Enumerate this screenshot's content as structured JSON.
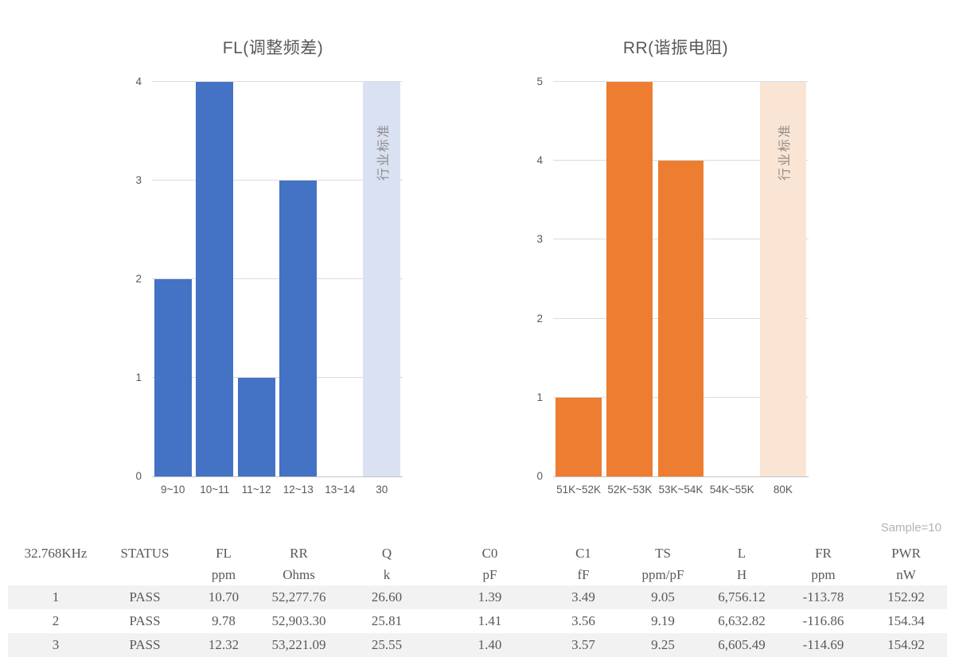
{
  "chart_data": [
    {
      "type": "bar",
      "title": "FL(调整频差)",
      "categories": [
        "9~10",
        "10~11",
        "11~12",
        "12~13",
        "13~14",
        "30"
      ],
      "values": [
        2,
        4,
        1,
        3,
        0,
        4
      ],
      "xlabel": "",
      "ylabel": "",
      "ylim": [
        0,
        4
      ],
      "ytick_step": 1,
      "grid": true,
      "legend": false,
      "bar_color": "#4472C4",
      "standard": {
        "index": 5,
        "category": "30",
        "label": "行业标准",
        "full_height": true
      },
      "standard_color": "#DAE1F2",
      "standard_text_color": "#8C8C8C"
    },
    {
      "type": "bar",
      "title": "RR(谐振电阻)",
      "categories": [
        "51K~52K",
        "52K~53K",
        "53K~54K",
        "54K~55K",
        "80K"
      ],
      "values": [
        1,
        5,
        4,
        0,
        5
      ],
      "xlabel": "",
      "ylabel": "",
      "ylim": [
        0,
        5
      ],
      "ytick_step": 1,
      "grid": true,
      "legend": false,
      "bar_color": "#ED7D31",
      "standard": {
        "index": 4,
        "category": "80K",
        "label": "行业标准",
        "full_height": true
      },
      "standard_color": "#FAE5D5",
      "standard_text_color": "#8C8C8C"
    }
  ],
  "table": {
    "sample_note": "Sample=10",
    "columns": [
      {
        "name": "32.768KHz",
        "unit": ""
      },
      {
        "name": "STATUS",
        "unit": ""
      },
      {
        "name": "FL",
        "unit": "ppm"
      },
      {
        "name": "RR",
        "unit": "Ohms"
      },
      {
        "name": "Q",
        "unit": "k"
      },
      {
        "name": "C0",
        "unit": "pF"
      },
      {
        "name": "C1",
        "unit": "fF"
      },
      {
        "name": "TS",
        "unit": "ppm/pF"
      },
      {
        "name": "L",
        "unit": "H"
      },
      {
        "name": "FR",
        "unit": "ppm"
      },
      {
        "name": "PWR",
        "unit": "nW"
      }
    ],
    "rows": [
      [
        "1",
        "PASS",
        "10.70",
        "52,277.76",
        "26.60",
        "1.39",
        "3.49",
        "9.05",
        "6,756.12",
        "-113.78",
        "152.92"
      ],
      [
        "2",
        "PASS",
        "9.78",
        "52,903.30",
        "25.81",
        "1.41",
        "3.56",
        "9.19",
        "6,632.82",
        "-116.86",
        "154.34"
      ],
      [
        "3",
        "PASS",
        "12.32",
        "53,221.09",
        "25.55",
        "1.40",
        "3.57",
        "9.25",
        "6,605.49",
        "-114.69",
        "154.92"
      ]
    ]
  },
  "colors": {
    "blue": "#4472C4",
    "light_blue": "#DAE1F2",
    "orange": "#ED7D31",
    "light_orange": "#FAE5D5",
    "gridline": "#DCDCDC",
    "axis_line": "#C3C3C3",
    "label_gray": "#595959",
    "standard_text": "#8C8C8C",
    "row_shade": "#F2F2F2",
    "note_gray": "#B3B3B3"
  }
}
